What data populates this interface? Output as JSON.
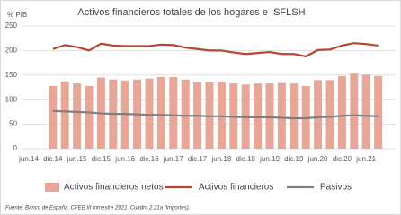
{
  "chart_data": {
    "type": "bar_line",
    "title": "Activos financieros totales de los hogares e ISFLSH",
    "y_label": "% PIB",
    "source": "Fuente: Banco de España. CFEE III trimestre 2021. Cuadro 2.21a (importes).",
    "categories": [
      "jun.14",
      null,
      "dic.14",
      null,
      "jun.15",
      null,
      "dic.15",
      null,
      "jun.16",
      null,
      "dic.16",
      null,
      "jun.17",
      null,
      "dic.17",
      null,
      "jun.18",
      null,
      "dic.18",
      null,
      "jun.19",
      null,
      "dic.19",
      null,
      "jun.20",
      null,
      "dic.20",
      null,
      "jun.21",
      null
    ],
    "series": [
      {
        "name": "Activos financieros netos",
        "type": "bar",
        "color": "#e6a799",
        "values": [
          null,
          null,
          128,
          137,
          133,
          128,
          145,
          141,
          139,
          141,
          143,
          146,
          146,
          141,
          137,
          135,
          135,
          133,
          131,
          133,
          133,
          134,
          133,
          128,
          140,
          140,
          148,
          153,
          151,
          148
        ]
      },
      {
        "name": "Activos financieros",
        "type": "line",
        "color": "#b5462f",
        "values": [
          null,
          null,
          203,
          211,
          207,
          200,
          214,
          210,
          209,
          209,
          209,
          212,
          211,
          206,
          203,
          200,
          200,
          196,
          193,
          195,
          197,
          193,
          193,
          188,
          201,
          202,
          210,
          215,
          213,
          210
        ]
      },
      {
        "name": "Pasivos",
        "type": "line",
        "color": "#7f7f7f",
        "values": [
          null,
          null,
          77,
          76,
          75,
          74,
          72,
          71,
          71,
          70,
          69,
          69,
          68,
          67,
          67,
          66,
          66,
          65,
          64,
          64,
          64,
          63,
          62,
          62,
          64,
          65,
          67,
          68,
          67,
          66
        ]
      }
    ],
    "ylim": [
      0,
      250
    ],
    "yticks": [
      0,
      50,
      100,
      150,
      200,
      250
    ],
    "grid": true
  }
}
